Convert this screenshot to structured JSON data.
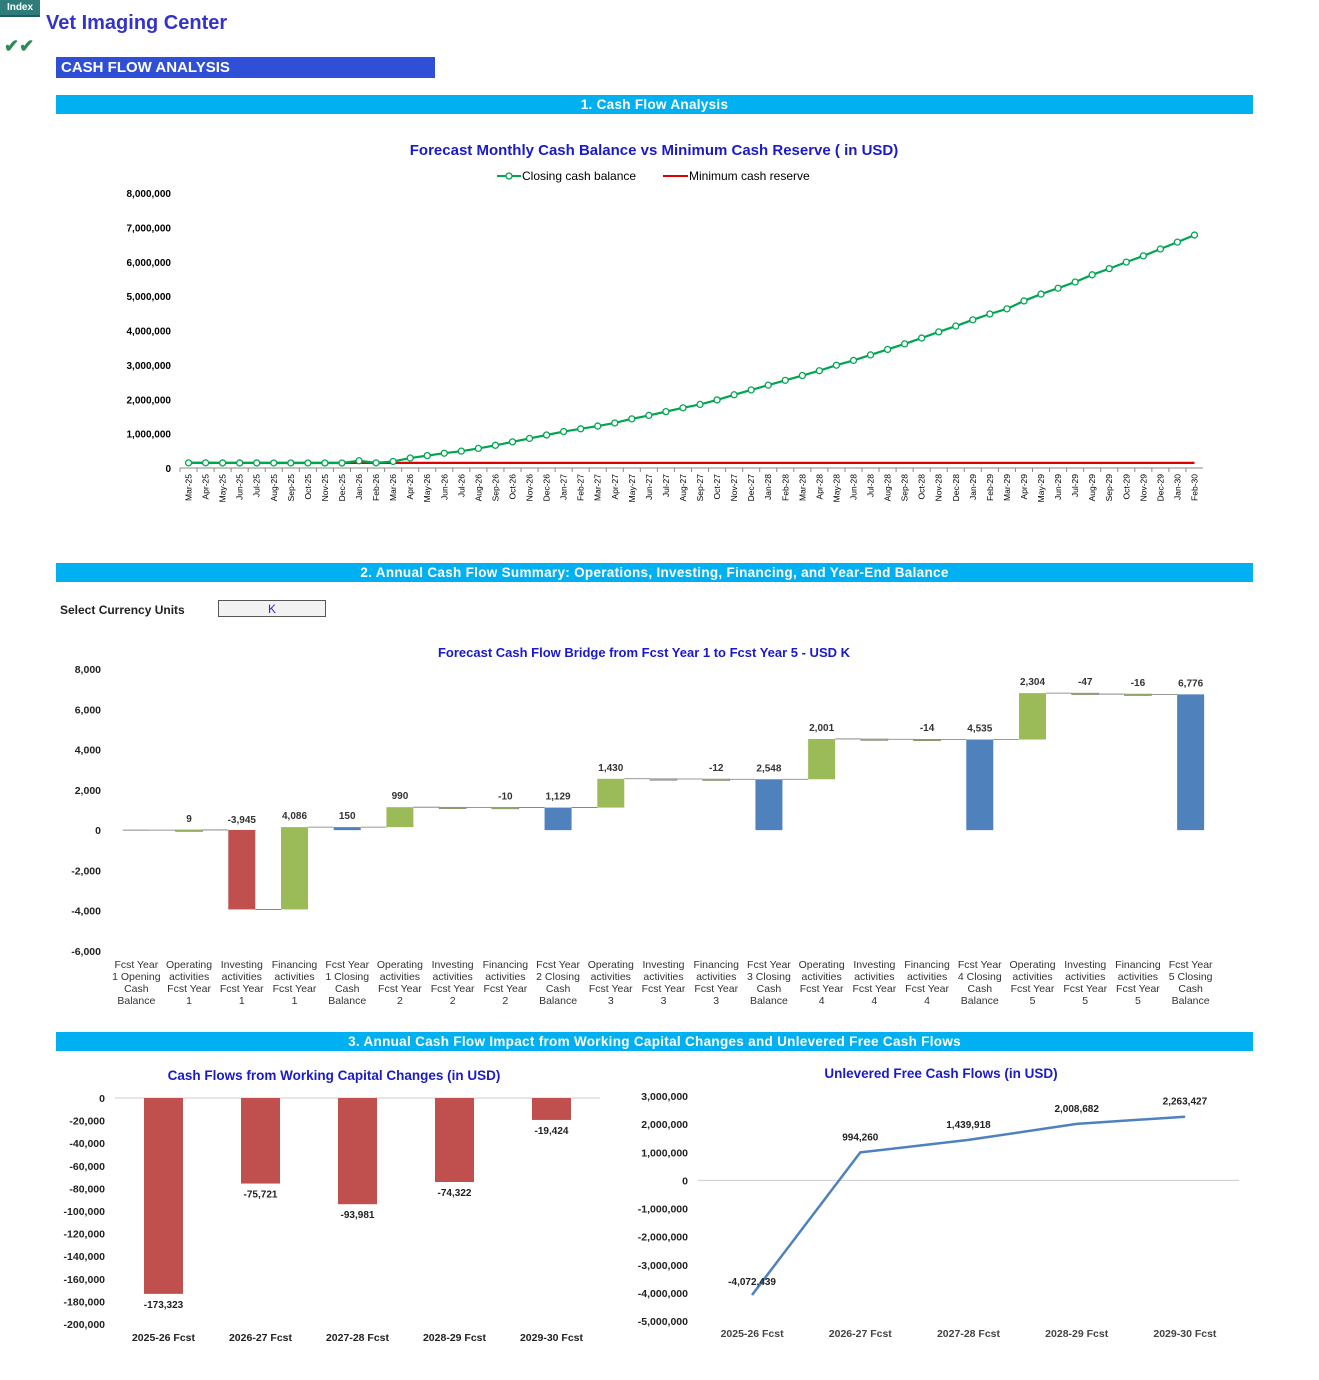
{
  "header": {
    "index_label": "Index",
    "app_title": "Vet Imaging Center",
    "check_mark": "✔✔",
    "section_title": "CASH FLOW ANALYSIS"
  },
  "bands": {
    "b1": "1. Cash Flow Analysis",
    "b2": "2. Annual Cash Flow Summary: Operations, Investing, Financing, and Year-End Balance",
    "b3": "3. Annual Cash Flow Impact from Working Capital Changes and Unlevered Free Cash Flows"
  },
  "currency": {
    "label": "Select Currency Units",
    "value": "K"
  },
  "colors": {
    "closing_line": "#00a550",
    "min_reserve_line": "#e00000",
    "bridge_blue": "#4f81bd",
    "bridge_red": "#c0504d",
    "bridge_green": "#9bbb59",
    "wc_bar": "#c0504d",
    "fcf_line": "#4f81bd",
    "title_blue": "#1a1acc"
  },
  "chart_data": [
    {
      "id": "monthly",
      "type": "line",
      "title": "Forecast Monthly Cash Balance vs Minimum Cash Reserve ( in USD)",
      "x": [
        "Mar-25",
        "Apr-25",
        "May-25",
        "Jun-25",
        "Jul-25",
        "Aug-25",
        "Sep-25",
        "Oct-25",
        "Nov-25",
        "Dec-25",
        "Jan-26",
        "Feb-26",
        "Mar-26",
        "Apr-26",
        "May-26",
        "Jun-26",
        "Jul-26",
        "Aug-26",
        "Sep-26",
        "Oct-26",
        "Nov-26",
        "Dec-26",
        "Jan-27",
        "Feb-27",
        "Mar-27",
        "Apr-27",
        "May-27",
        "Jun-27",
        "Jul-27",
        "Aug-27",
        "Sep-27",
        "Oct-27",
        "Nov-27",
        "Dec-27",
        "Jan-28",
        "Feb-28",
        "Mar-28",
        "Apr-28",
        "May-28",
        "Jun-28",
        "Jul-28",
        "Aug-28",
        "Sep-28",
        "Oct-28",
        "Nov-28",
        "Dec-28",
        "Jan-29",
        "Feb-29",
        "Mar-29",
        "Apr-29",
        "May-29",
        "Jun-29",
        "Jul-29",
        "Aug-29",
        "Sep-29",
        "Oct-29",
        "Nov-29",
        "Dec-29",
        "Jan-30",
        "Feb-30"
      ],
      "series": [
        {
          "name": "Closing cash balance",
          "values": [
            150000,
            150000,
            148000,
            147000,
            147000,
            146000,
            146000,
            146000,
            145000,
            145000,
            210000,
            150000,
            190000,
            290000,
            360000,
            430000,
            490000,
            570000,
            660000,
            760000,
            860000,
            960000,
            1060000,
            1140000,
            1220000,
            1310000,
            1430000,
            1530000,
            1640000,
            1750000,
            1850000,
            1980000,
            2130000,
            2270000,
            2410000,
            2550000,
            2690000,
            2830000,
            2990000,
            3130000,
            3290000,
            3450000,
            3610000,
            3780000,
            3960000,
            4130000,
            4310000,
            4480000,
            4630000,
            4860000,
            5060000,
            5230000,
            5410000,
            5620000,
            5800000,
            5990000,
            6170000,
            6370000,
            6570000,
            6776000
          ]
        },
        {
          "name": "Minimum cash reserve",
          "values": [
            150000,
            150000,
            150000,
            150000,
            150000,
            150000,
            150000,
            150000,
            150000,
            150000,
            150000,
            150000,
            150000,
            150000,
            150000,
            150000,
            150000,
            150000,
            150000,
            150000,
            150000,
            150000,
            150000,
            150000,
            150000,
            150000,
            150000,
            150000,
            150000,
            150000,
            150000,
            150000,
            150000,
            150000,
            150000,
            150000,
            150000,
            150000,
            150000,
            150000,
            150000,
            150000,
            150000,
            150000,
            150000,
            150000,
            150000,
            150000,
            150000,
            150000,
            150000,
            150000,
            150000,
            150000,
            150000,
            150000,
            150000,
            150000,
            150000,
            150000
          ]
        }
      ],
      "ylim": [
        0,
        8000000
      ],
      "yticks": [
        "0",
        "1,000,000",
        "2,000,000",
        "3,000,000",
        "4,000,000",
        "5,000,000",
        "6,000,000",
        "7,000,000",
        "8,000,000"
      ],
      "legend": "top-center"
    },
    {
      "id": "bridge",
      "type": "bar",
      "title": "Forecast Cash Flow Bridge from Fcst Year 1 to Fcst Year 5 - USD K",
      "categories": [
        [
          "Fcst Year",
          "1 Opening",
          "Cash",
          "Balance"
        ],
        [
          "Operating",
          "activities",
          "Fcst Year",
          "1"
        ],
        [
          "Investing",
          "activities",
          "Fcst Year",
          "1"
        ],
        [
          "Financing",
          "activities",
          "Fcst Year",
          "1"
        ],
        [
          "Fcst Year",
          "1 Closing",
          "Cash",
          "Balance"
        ],
        [
          "Operating",
          "activities",
          "Fcst Year",
          "2"
        ],
        [
          "Investing",
          "activities",
          "Fcst Year",
          "2"
        ],
        [
          "Financing",
          "activities",
          "Fcst Year",
          "2"
        ],
        [
          "Fcst Year",
          "2 Closing",
          "Cash",
          "Balance"
        ],
        [
          "Operating",
          "activities",
          "Fcst Year",
          "3"
        ],
        [
          "Investing",
          "activities",
          "Fcst Year",
          "3"
        ],
        [
          "Financing",
          "activities",
          "Fcst Year",
          "3"
        ],
        [
          "Fcst Year",
          "3 Closing",
          "Cash",
          "Balance"
        ],
        [
          "Operating",
          "activities",
          "Fcst Year",
          "4"
        ],
        [
          "Investing",
          "activities",
          "Fcst Year",
          "4"
        ],
        [
          "Financing",
          "activities",
          "Fcst Year",
          "4"
        ],
        [
          "Fcst Year",
          "4 Closing",
          "Cash",
          "Balance"
        ],
        [
          "Operating",
          "activities",
          "Fcst Year",
          "5"
        ],
        [
          "Investing",
          "activities",
          "Fcst Year",
          "5"
        ],
        [
          "Financing",
          "activities",
          "Fcst Year",
          "5"
        ],
        [
          "Fcst Year",
          "5 Closing",
          "Cash",
          "Balance"
        ]
      ],
      "values": [
        0,
        9,
        -3945,
        4086,
        150,
        990,
        -10,
        -10,
        1129,
        1430,
        -12,
        -12,
        2548,
        2001,
        -14,
        -14,
        4535,
        2304,
        -47,
        -16,
        6776
      ],
      "labels": [
        "",
        "9",
        "-3,945",
        "4,086",
        "150",
        "990",
        "",
        "-10",
        "1,129",
        "1,430",
        "",
        "-12",
        "2,548",
        "2,001",
        "",
        "-14",
        "4,535",
        "2,304",
        "-47",
        "-16",
        "6,776"
      ],
      "kinds": [
        "total",
        "delta",
        "delta",
        "delta",
        "total",
        "delta",
        "delta",
        "delta",
        "total",
        "delta",
        "delta",
        "delta",
        "total",
        "delta",
        "delta",
        "delta",
        "total",
        "delta",
        "delta",
        "delta",
        "total"
      ],
      "ylim": [
        -6000,
        8000
      ],
      "yticks": [
        "-6,000",
        "-4,000",
        "-2,000",
        "0",
        "2,000",
        "4,000",
        "6,000",
        "8,000"
      ]
    },
    {
      "id": "wc",
      "type": "bar",
      "title": "Cash Flows from Working Capital Changes (in USD)",
      "categories": [
        "2025-26 Fcst",
        "2026-27 Fcst",
        "2027-28 Fcst",
        "2028-29 Fcst",
        "2029-30 Fcst"
      ],
      "values": [
        -173323,
        -75721,
        -93981,
        -74322,
        -19424
      ],
      "labels": [
        "-173,323",
        "-75,721",
        "-93,981",
        "-74,322",
        "-19,424"
      ],
      "ylim": [
        -200000,
        0
      ],
      "yticks": [
        "0",
        "-20,000",
        "-40,000",
        "-60,000",
        "-80,000",
        "-100,000",
        "-120,000",
        "-140,000",
        "-160,000",
        "-180,000",
        "-200,000"
      ]
    },
    {
      "id": "fcf",
      "type": "line",
      "title": "Unlevered Free Cash Flows (in USD)",
      "categories": [
        "2025-26 Fcst",
        "2026-27 Fcst",
        "2027-28 Fcst",
        "2028-29 Fcst",
        "2029-30 Fcst"
      ],
      "values": [
        -4072439,
        994260,
        1439918,
        2008682,
        2263427
      ],
      "labels": [
        "-4,072,439",
        "994,260",
        "1,439,918",
        "2,008,682",
        "2,263,427"
      ],
      "ylim": [
        -5000000,
        3000000
      ],
      "yticks": [
        "3,000,000",
        "2,000,000",
        "1,000,000",
        "0",
        "-1,000,000",
        "-2,000,000",
        "-3,000,000",
        "-4,000,000",
        "-5,000,000"
      ]
    }
  ]
}
